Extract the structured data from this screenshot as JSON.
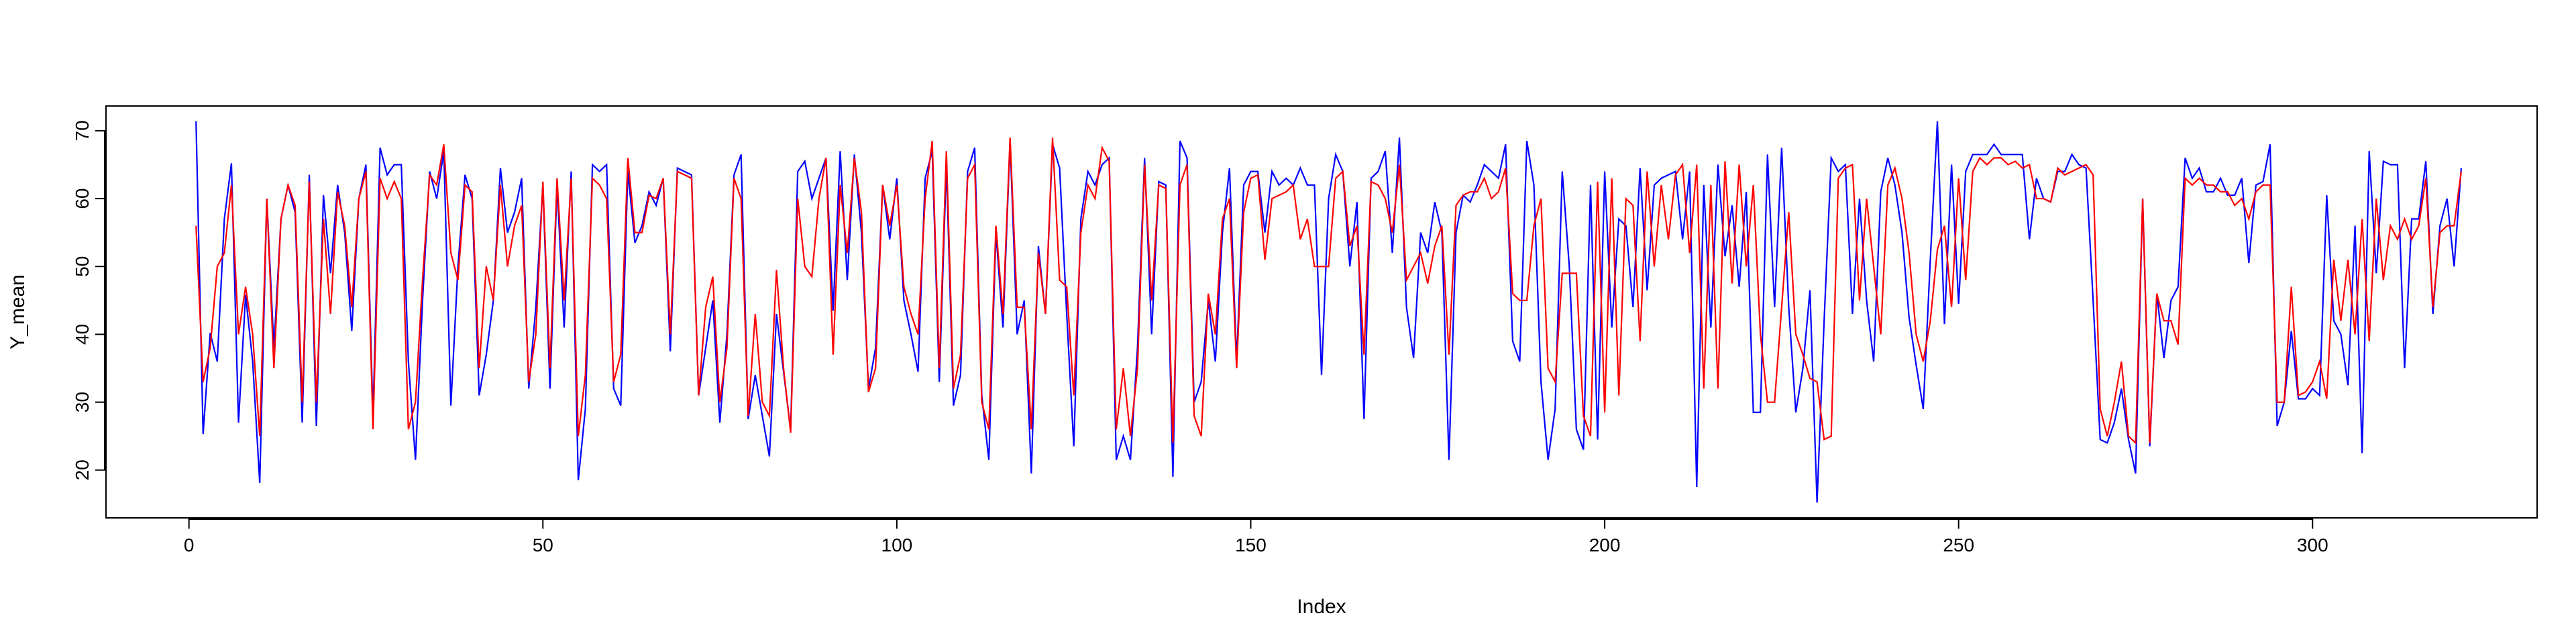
{
  "chart_data": {
    "type": "line",
    "xlabel": "Index",
    "ylabel": "Y_mean",
    "xlim": [
      1,
      319
    ],
    "ylim": [
      15.2,
      71.4
    ],
    "x_ticks": [
      0,
      50,
      100,
      150,
      200,
      250,
      300
    ],
    "y_ticks": [
      20,
      30,
      40,
      50,
      60,
      70
    ],
    "grid": false,
    "legend": "none",
    "series": [
      {
        "color": "#0000ff",
        "values": [
          71.4,
          25.3,
          40.2,
          36.0,
          57.0,
          65.2,
          27.0,
          45.8,
          36.0,
          18.1,
          60.0,
          38.0,
          57.0,
          62.0,
          58.0,
          27.0,
          63.5,
          26.5,
          60.5,
          49.0,
          62.0,
          55.0,
          40.5,
          60.0,
          65.0,
          28.0,
          67.5,
          63.5,
          65.0,
          65.0,
          36.0,
          21.5,
          45.0,
          64.0,
          60.0,
          67.0,
          29.5,
          50.0,
          63.5,
          60.0,
          31.0,
          37.0,
          45.0,
          64.5,
          55.0,
          58.0,
          63.0,
          32.0,
          44.0,
          62.0,
          32.0,
          62.0,
          41.0,
          64.0,
          18.5,
          29.0,
          65.0,
          64.0,
          65.0,
          32.0,
          29.5,
          64.0,
          53.5,
          56.0,
          61.0,
          59.0,
          63.0,
          37.5,
          64.5,
          64.0,
          63.5,
          31.0,
          38.0,
          45.0,
          27.0,
          40.0,
          63.5,
          66.5,
          27.5,
          34.0,
          28.0,
          22.0,
          43.0,
          34.5,
          26.0,
          64.0,
          65.5,
          60.0,
          63.0,
          66.0,
          43.5,
          67.0,
          48.0,
          66.5,
          55.0,
          32.0,
          38.0,
          62.0,
          54.0,
          63.0,
          45.0,
          40.0,
          34.5,
          63.0,
          67.0,
          33.0,
          65.0,
          29.5,
          34.0,
          64.0,
          67.5,
          31.0,
          21.5,
          55.0,
          41.0,
          68.5,
          40.0,
          45.0,
          19.5,
          53.0,
          43.0,
          68.0,
          64.5,
          43.0,
          23.5,
          57.0,
          64.0,
          62.0,
          65.0,
          66.0,
          21.5,
          25.0,
          21.5,
          38.0,
          66.0,
          40.0,
          62.5,
          62.0,
          19.0,
          68.5,
          66.0,
          30.0,
          33.0,
          45.0,
          36.0,
          55.0,
          64.5,
          36.0,
          62.0,
          64.0,
          64.0,
          55.0,
          64.0,
          62.0,
          63.0,
          62.0,
          64.5,
          62.0,
          62.0,
          34.0,
          60.0,
          66.5,
          64.0,
          50.0,
          59.5,
          27.5,
          63.0,
          64.0,
          67.0,
          52.0,
          69.0,
          44.0,
          36.5,
          55.0,
          52.0,
          59.5,
          55.0,
          21.5,
          55.0,
          60.5,
          59.5,
          62.0,
          65.0,
          64.0,
          63.0,
          68.0,
          39.0,
          36.0,
          68.5,
          62.0,
          33.0,
          21.5,
          29.0,
          64.0,
          50.0,
          26.0,
          23.0,
          62.0,
          24.5,
          64.0,
          41.0,
          57.0,
          56.0,
          44.0,
          64.5,
          46.5,
          62.0,
          63.0,
          63.5,
          64.0,
          54.0,
          64.0,
          17.5,
          62.0,
          41.0,
          65.0,
          51.5,
          59.0,
          47.0,
          61.0,
          28.5,
          28.5,
          66.5,
          44.0,
          67.5,
          44.0,
          28.5,
          35.0,
          46.5,
          15.2,
          42.0,
          66.0,
          64.0,
          65.0,
          43.0,
          60.0,
          45.0,
          36.0,
          61.0,
          66.0,
          62.0,
          55.0,
          42.5,
          35.5,
          29.0,
          51.0,
          71.4,
          41.5,
          65.0,
          44.5,
          64.0,
          66.5,
          66.5,
          66.5,
          68.0,
          66.5,
          66.5,
          66.5,
          66.5,
          54.0,
          63.0,
          60.0,
          59.5,
          64.0,
          64.0,
          66.5,
          65.0,
          64.5,
          45.0,
          24.5,
          24.0,
          27.0,
          32.0,
          24.5,
          19.5,
          60.0,
          23.5,
          46.0,
          36.5,
          45.0,
          47.0,
          66.0,
          63.0,
          64.5,
          61.0,
          61.0,
          63.0,
          60.5,
          60.5,
          63.0,
          50.5,
          62.0,
          62.5,
          68.0,
          26.5,
          30.0,
          40.5,
          30.5,
          30.5,
          32.0,
          31.0,
          60.5,
          42.0,
          40.0,
          32.5,
          56.0,
          22.5,
          67.0,
          49.0,
          65.5,
          65.0,
          65.0,
          35.0,
          57.0,
          57.0,
          65.5,
          43.0,
          56.0,
          60.0,
          50.0,
          64.5
        ]
      },
      {
        "color": "#ff0000",
        "values": [
          56.0,
          33.0,
          38.0,
          50.0,
          52.0,
          62.0,
          40.0,
          47.0,
          40.0,
          25.0,
          60.0,
          35.0,
          57.0,
          62.0,
          59.0,
          30.0,
          62.5,
          30.0,
          57.0,
          43.0,
          61.0,
          56.0,
          44.0,
          60.0,
          64.0,
          26.0,
          63.0,
          60.0,
          62.5,
          60.0,
          26.0,
          30.0,
          48.0,
          63.5,
          62.0,
          68.0,
          52.0,
          48.0,
          62.0,
          61.0,
          35.0,
          50.0,
          45.0,
          62.0,
          50.0,
          56.0,
          59.0,
          33.0,
          40.0,
          62.5,
          35.0,
          63.0,
          45.0,
          63.0,
          25.0,
          34.0,
          63.0,
          62.0,
          60.0,
          33.0,
          37.0,
          66.0,
          55.0,
          55.0,
          60.5,
          60.0,
          63.0,
          40.0,
          64.0,
          63.5,
          63.0,
          31.0,
          44.0,
          48.5,
          30.0,
          38.0,
          63.0,
          60.0,
          28.0,
          43.0,
          30.0,
          28.0,
          49.5,
          35.0,
          25.5,
          60.0,
          50.0,
          48.5,
          60.0,
          66.0,
          37.0,
          62.0,
          52.0,
          66.0,
          58.0,
          31.5,
          35.0,
          62.0,
          56.0,
          62.0,
          47.0,
          43.0,
          40.0,
          60.0,
          68.5,
          35.0,
          67.0,
          32.0,
          37.0,
          63.0,
          65.0,
          30.0,
          26.0,
          56.0,
          43.0,
          69.0,
          44.0,
          44.0,
          26.0,
          52.0,
          43.0,
          69.0,
          48.0,
          47.0,
          31.0,
          55.0,
          62.0,
          60.0,
          67.5,
          65.5,
          26.0,
          35.0,
          25.0,
          35.0,
          65.0,
          45.0,
          62.0,
          61.5,
          24.0,
          62.0,
          65.0,
          28.0,
          25.0,
          46.0,
          40.0,
          57.0,
          60.0,
          35.0,
          58.0,
          63.0,
          63.5,
          51.0,
          60.0,
          60.5,
          61.0,
          62.0,
          54.0,
          57.0,
          50.0,
          50.0,
          50.0,
          63.0,
          64.0,
          53.0,
          56.0,
          37.0,
          62.5,
          62.0,
          60.0,
          55.0,
          65.0,
          48.0,
          50.0,
          52.0,
          47.5,
          53.0,
          56.0,
          37.0,
          59.0,
          60.5,
          61.0,
          61.0,
          63.0,
          60.0,
          61.0,
          64.5,
          46.0,
          45.0,
          45.0,
          56.0,
          60.0,
          35.0,
          33.0,
          49.0,
          49.0,
          49.0,
          28.0,
          25.0,
          62.5,
          28.5,
          63.0,
          31.0,
          60.0,
          59.0,
          39.0,
          64.0,
          50.0,
          62.0,
          54.0,
          63.5,
          65.0,
          52.0,
          65.0,
          32.0,
          62.0,
          32.0,
          65.5,
          47.5,
          65.0,
          50.0,
          62.0,
          40.0,
          30.0,
          30.0,
          44.0,
          58.0,
          40.0,
          37.0,
          33.5,
          33.0,
          24.5,
          25.0,
          63.0,
          64.5,
          65.0,
          45.0,
          60.0,
          50.0,
          40.0,
          62.0,
          64.5,
          60.0,
          52.0,
          40.0,
          36.0,
          42.0,
          52.5,
          56.0,
          44.0,
          63.0,
          48.0,
          64.0,
          66.0,
          65.0,
          66.0,
          66.0,
          65.0,
          65.5,
          64.5,
          65.0,
          60.0,
          60.0,
          59.5,
          64.5,
          63.5,
          64.0,
          64.5,
          65.0,
          63.5,
          29.0,
          25.0,
          30.0,
          36.0,
          25.0,
          24.0,
          60.0,
          24.0,
          46.0,
          42.0,
          42.0,
          38.5,
          63.0,
          62.0,
          63.0,
          62.0,
          62.0,
          61.0,
          61.0,
          59.0,
          60.0,
          57.0,
          61.0,
          62.0,
          62.0,
          30.0,
          30.0,
          47.0,
          31.0,
          31.5,
          33.0,
          36.0,
          30.5,
          51.0,
          42.0,
          51.0,
          40.0,
          57.0,
          39.0,
          60.0,
          48.0,
          56.0,
          54.0,
          57.0,
          54.0,
          56.0,
          63.0,
          44.0,
          55.0,
          56.0,
          56.0,
          64.0
        ]
      }
    ]
  }
}
